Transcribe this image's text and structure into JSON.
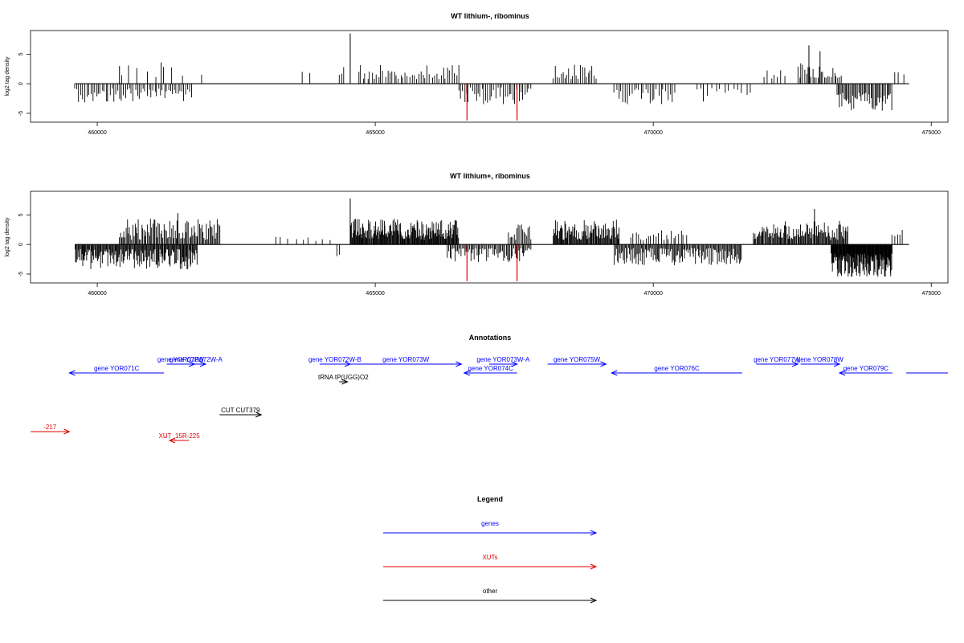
{
  "chart_data": [
    {
      "type": "bar",
      "title": "WT lithium-, ribominus",
      "ylabel": "log2 tag density",
      "xlim": [
        458800,
        475300
      ],
      "ylim": [
        -6.5,
        9
      ],
      "xticks": [
        460000,
        465000,
        470000,
        475000
      ],
      "yticks": [
        -5,
        0,
        5
      ],
      "highlight_color": "#e00000",
      "bar_color": "#000000",
      "highlights": [
        {
          "x": 466650,
          "y": -6.2
        },
        {
          "x": 467550,
          "y": -6.2
        }
      ],
      "segments": [
        {
          "x0": 459600,
          "x1": 461700,
          "sign": -1,
          "lo": 0.8,
          "hi": 3.2,
          "step": 35
        },
        {
          "x0": 460400,
          "x1": 461600,
          "sign": 1,
          "lo": 0.8,
          "hi": 3.5,
          "step": 160
        },
        {
          "x0": 461900,
          "x1": 461950,
          "sign": 1,
          "lo": 1.5,
          "hi": 1.6,
          "step": 80
        },
        {
          "x0": 463700,
          "x1": 464000,
          "sign": 1,
          "lo": 1.8,
          "hi": 2.3,
          "step": 160
        },
        {
          "x0": 464350,
          "x1": 464450,
          "sign": 1,
          "lo": 1.5,
          "hi": 3.0,
          "step": 40
        },
        {
          "x0": 464700,
          "x1": 466500,
          "sign": 1,
          "lo": 0.8,
          "hi": 3.4,
          "step": 40
        },
        {
          "x0": 466500,
          "x1": 467800,
          "sign": -1,
          "lo": 0.6,
          "hi": 3.5,
          "step": 35
        },
        {
          "x0": 468200,
          "x1": 469000,
          "sign": 1,
          "lo": 0.8,
          "hi": 3.3,
          "step": 35
        },
        {
          "x0": 469300,
          "x1": 470400,
          "sign": -1,
          "lo": 0.8,
          "hi": 3.5,
          "step": 40
        },
        {
          "x0": 470800,
          "x1": 471800,
          "sign": -1,
          "lo": 0.6,
          "hi": 2.2,
          "step": 80
        },
        {
          "x0": 472000,
          "x1": 472400,
          "sign": 1,
          "lo": 0.8,
          "hi": 2.3,
          "step": 60
        },
        {
          "x0": 472600,
          "x1": 473400,
          "sign": 1,
          "lo": 1.0,
          "hi": 3.8,
          "step": 30
        },
        {
          "x0": 473300,
          "x1": 474300,
          "sign": -1,
          "lo": 1.5,
          "hi": 4.6,
          "step": 22
        },
        {
          "x0": 474350,
          "x1": 474500,
          "sign": 1,
          "lo": 1.0,
          "hi": 2.0,
          "step": 70
        }
      ],
      "spikes": [
        {
          "x": 464550,
          "y": 8.5
        },
        {
          "x": 472800,
          "y": 6.5
        },
        {
          "x": 473000,
          "y": 5.5
        },
        {
          "x": 460400,
          "y": 3.0
        },
        {
          "x": 461150,
          "y": 3.6
        },
        {
          "x": 470900,
          "y": -3.0
        }
      ]
    },
    {
      "type": "bar",
      "title": "WT lithium+, ribominus",
      "ylabel": "log2 tag density",
      "xlim": [
        458800,
        475300
      ],
      "ylim": [
        -6.5,
        9
      ],
      "xticks": [
        460000,
        465000,
        470000,
        475000
      ],
      "yticks": [
        -5,
        0,
        5
      ],
      "highlight_color": "#e00000",
      "bar_color": "#000000",
      "highlights": [
        {
          "x": 466650,
          "y": -6.2
        },
        {
          "x": 467550,
          "y": -6.2
        }
      ],
      "segments": [
        {
          "x0": 459600,
          "x1": 461800,
          "sign": -1,
          "lo": 0.8,
          "hi": 4.2,
          "step": 14
        },
        {
          "x0": 460400,
          "x1": 462200,
          "sign": 1,
          "lo": 0.8,
          "hi": 4.4,
          "step": 20
        },
        {
          "x0": 463200,
          "x1": 464200,
          "sign": 1,
          "lo": 0.6,
          "hi": 1.6,
          "step": 120
        },
        {
          "x0": 464300,
          "x1": 464400,
          "sign": -1,
          "lo": 1.5,
          "hi": 2.2,
          "step": 60
        },
        {
          "x0": 464550,
          "x1": 466500,
          "sign": 1,
          "lo": 0.8,
          "hi": 4.4,
          "step": 12
        },
        {
          "x0": 466300,
          "x1": 467800,
          "sign": -1,
          "lo": 0.6,
          "hi": 3.0,
          "step": 22
        },
        {
          "x0": 467400,
          "x1": 467800,
          "sign": 1,
          "lo": 0.8,
          "hi": 3.5,
          "step": 25
        },
        {
          "x0": 468200,
          "x1": 469400,
          "sign": 1,
          "lo": 0.8,
          "hi": 4.2,
          "step": 14
        },
        {
          "x0": 469300,
          "x1": 471600,
          "sign": -1,
          "lo": 0.6,
          "hi": 3.5,
          "step": 18
        },
        {
          "x0": 469600,
          "x1": 470600,
          "sign": 1,
          "lo": 0.6,
          "hi": 2.5,
          "step": 45
        },
        {
          "x0": 471800,
          "x1": 473500,
          "sign": 1,
          "lo": 0.8,
          "hi": 4.0,
          "step": 16
        },
        {
          "x0": 473200,
          "x1": 474300,
          "sign": -1,
          "lo": 1.5,
          "hi": 5.5,
          "step": 8
        },
        {
          "x0": 474300,
          "x1": 474500,
          "sign": 1,
          "lo": 1.0,
          "hi": 2.5,
          "step": 45
        }
      ],
      "spikes": [
        {
          "x": 464550,
          "y": 7.8
        },
        {
          "x": 472900,
          "y": 6.0
        },
        {
          "x": 461450,
          "y": 5.3
        }
      ]
    }
  ],
  "annotations": {
    "title": "Annotations",
    "xlim": [
      458800,
      475300
    ],
    "features": [
      {
        "label": "gene YOR071C",
        "x0": 459500,
        "x1": 461200,
        "dir": "left",
        "row": 1,
        "color": "#0000ff"
      },
      {
        "label": "gene YOR072W",
        "x0": 461250,
        "x1": 461750,
        "dir": "right",
        "row": 0,
        "color": "#0000ff"
      },
      {
        "label": "gene YOR072W-A",
        "x0": 461600,
        "x1": 461950,
        "dir": "right",
        "row": 0,
        "color": "#0000ff"
      },
      {
        "label": "gene YOR072W-B",
        "x0": 464000,
        "x1": 464550,
        "dir": "right",
        "row": 0,
        "color": "#0000ff"
      },
      {
        "label": "gene YOR073W",
        "x0": 464550,
        "x1": 466550,
        "dir": "right",
        "row": 0,
        "color": "#0000ff"
      },
      {
        "label": "gene YOR073W-A",
        "x0": 467050,
        "x1": 467550,
        "dir": "right",
        "row": 0,
        "color": "#0000ff"
      },
      {
        "label": "gene YOR074C",
        "x0": 466600,
        "x1": 467550,
        "dir": "left",
        "row": 1,
        "color": "#0000ff"
      },
      {
        "label": "gene YOR075W",
        "x0": 468100,
        "x1": 469150,
        "dir": "right",
        "row": 0,
        "color": "#0000ff"
      },
      {
        "label": "gene YOR076C",
        "x0": 469250,
        "x1": 471600,
        "dir": "left",
        "row": 1,
        "color": "#0000ff"
      },
      {
        "label": "gene YOR077W",
        "x0": 471850,
        "x1": 472600,
        "dir": "right",
        "row": 0,
        "color": "#0000ff"
      },
      {
        "label": "gene YOR078W",
        "x0": 472650,
        "x1": 473350,
        "dir": "right",
        "row": 0,
        "color": "#0000ff"
      },
      {
        "label": "gene YOR079C",
        "x0": 473350,
        "x1": 474300,
        "dir": "left",
        "row": 1,
        "color": "#0000ff"
      },
      {
        "label": "",
        "x0": 474550,
        "x1": 475300,
        "dir": "none",
        "row": 1,
        "color": "#0000ff"
      },
      {
        "label": "tRNA tP(UGG)O2",
        "x0": 464350,
        "x1": 464500,
        "dir": "right",
        "row": 2,
        "color": "#000000"
      },
      {
        "label": "CUT CUT379",
        "x0": 462200,
        "x1": 462950,
        "dir": "right",
        "row": 3,
        "color": "#000000"
      },
      {
        "label": "-217",
        "x0": 458800,
        "x1": 459500,
        "dir": "right",
        "row": 4,
        "color": "#e00000"
      },
      {
        "label": "XUT_15R-225",
        "x0": 461300,
        "x1": 461650,
        "dir": "left",
        "row": 5,
        "color": "#e00000"
      }
    ]
  },
  "legend": {
    "title": "Legend",
    "items": [
      {
        "label": "genes",
        "color": "#0000ff"
      },
      {
        "label": "XUTs",
        "color": "#e00000"
      },
      {
        "label": "other",
        "color": "#000000"
      }
    ]
  }
}
